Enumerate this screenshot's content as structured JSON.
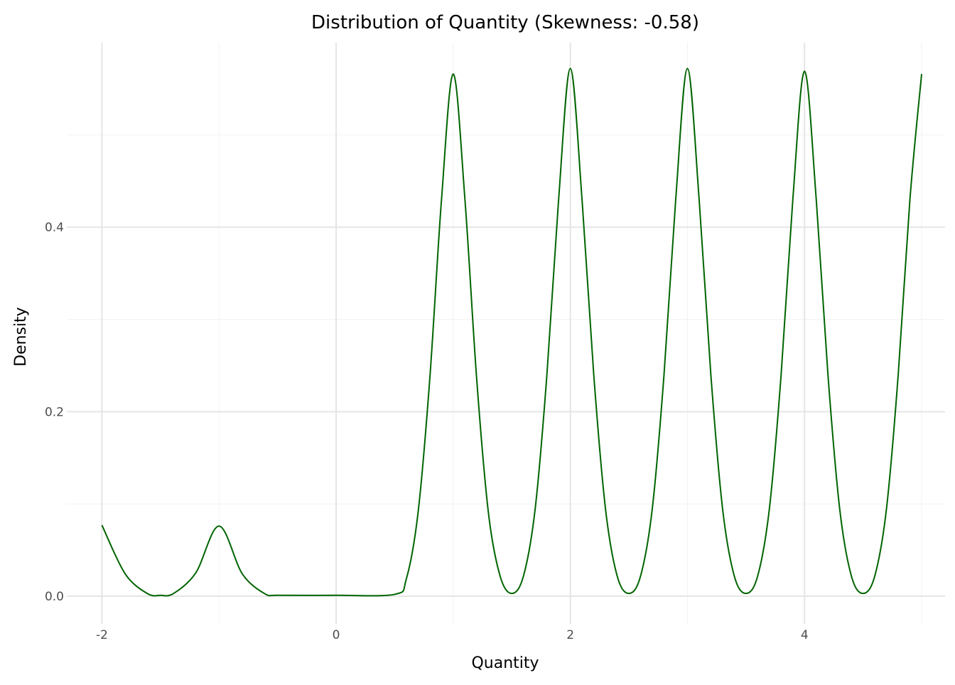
{
  "chart_data": {
    "type": "line",
    "title": "Distribution of Quantity (Skewness: -0.58)",
    "xlabel": "Quantity",
    "ylabel": "Density",
    "xlim": [
      -2.3,
      5.2
    ],
    "ylim": [
      -0.03,
      0.6
    ],
    "x_ticks": [
      {
        "value": -2,
        "label": "-2"
      },
      {
        "value": 0,
        "label": "0"
      },
      {
        "value": 2,
        "label": "2"
      },
      {
        "value": 4,
        "label": "4"
      }
    ],
    "y_ticks": [
      {
        "value": 0.0,
        "label": "0.0"
      },
      {
        "value": 0.2,
        "label": "0.2"
      },
      {
        "value": 0.4,
        "label": "0.4"
      }
    ],
    "x_minor_grid": [
      -1,
      1,
      3,
      5
    ],
    "y_minor_grid": [
      0.1,
      0.3,
      0.5
    ],
    "grid": true,
    "legend": "none",
    "colors": {
      "line": "#006400",
      "major_grid": "#e5e5e5",
      "minor_grid": "#f2f2f2",
      "background": "#ffffff"
    },
    "series": [
      {
        "x": [
          -2.0,
          -1.8,
          -1.6,
          -1.5,
          -1.4,
          -1.2,
          -1.0,
          -0.8,
          -0.6,
          -0.5,
          0.0,
          0.5,
          0.6,
          0.7,
          0.8,
          0.9,
          1.0,
          1.1,
          1.2,
          1.3,
          1.4,
          1.5,
          1.6,
          1.7,
          1.8,
          1.9,
          2.0,
          2.1,
          2.2,
          2.3,
          2.4,
          2.5,
          2.6,
          2.7,
          2.8,
          2.9,
          3.0,
          3.1,
          3.2,
          3.3,
          3.4,
          3.5,
          3.6,
          3.7,
          3.8,
          3.9,
          4.0,
          4.1,
          4.2,
          4.3,
          4.4,
          4.5,
          4.6,
          4.7,
          4.8,
          4.9,
          5.0
        ],
        "y": [
          0.077,
          0.024,
          0.002,
          0.001,
          0.002,
          0.025,
          0.076,
          0.024,
          0.002,
          0.001,
          0.001,
          0.002,
          0.019,
          0.091,
          0.236,
          0.43,
          0.566,
          0.43,
          0.236,
          0.091,
          0.022,
          0.003,
          0.022,
          0.095,
          0.24,
          0.43,
          0.572,
          0.43,
          0.24,
          0.095,
          0.022,
          0.003,
          0.022,
          0.095,
          0.24,
          0.43,
          0.572,
          0.43,
          0.24,
          0.095,
          0.022,
          0.003,
          0.022,
          0.095,
          0.24,
          0.43,
          0.569,
          0.43,
          0.24,
          0.095,
          0.022,
          0.003,
          0.022,
          0.095,
          0.24,
          0.43,
          0.566
        ]
      }
    ]
  }
}
